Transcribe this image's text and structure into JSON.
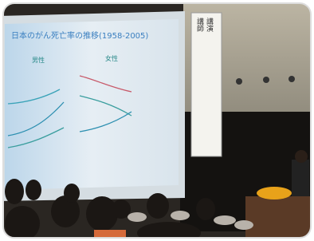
{
  "slide": {
    "title": "日本のがん死亡率の推移(1958-2005)",
    "panels": [
      "男性",
      "女性"
    ]
  },
  "banner": {
    "lines": [
      "講演",
      "講師"
    ]
  }
}
